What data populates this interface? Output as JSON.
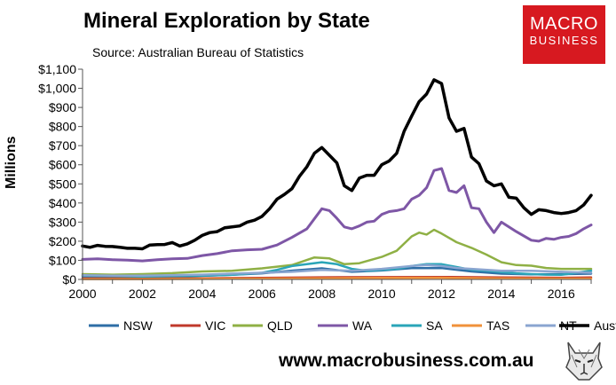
{
  "brand": {
    "line1": "MACRO",
    "line2": "BUSINESS",
    "color": "#d71920"
  },
  "website": "www.macrobusiness.com.au",
  "logo_icon": "wolf-head-icon",
  "chart_data": {
    "type": "line",
    "title": "Mineral Exploration by State",
    "subtitle": "Source: Australian Bureau of Statistics",
    "xlabel": "",
    "ylabel": "Millions",
    "xlim": [
      2000,
      2017
    ],
    "ylim": [
      0,
      1100
    ],
    "x_ticks": [
      2000,
      2002,
      2004,
      2006,
      2008,
      2010,
      2012,
      2014,
      2016
    ],
    "x_tick_labels": [
      "2000",
      "2002",
      "2004",
      "2006",
      "2008",
      "2010",
      "2012",
      "2014",
      "2016"
    ],
    "y_ticks": [
      0,
      100,
      200,
      300,
      400,
      500,
      600,
      700,
      800,
      900,
      1000,
      1100
    ],
    "y_tick_labels": [
      "$0",
      "$100",
      "$200",
      "$300",
      "$400",
      "$500",
      "$600",
      "$700",
      "$800",
      "$900",
      "$1,000",
      "$1,100"
    ],
    "grid": false,
    "legend_position": "bottom",
    "series": [
      {
        "name": "NSW",
        "color": "#2e6ea6",
        "width": 2.5,
        "x": [
          2000,
          2001,
          2002,
          2003,
          2004,
          2005,
          2006,
          2007,
          2008,
          2009,
          2010,
          2011,
          2012,
          2013,
          2014,
          2015,
          2016,
          2017
        ],
        "values": [
          14,
          13,
          13,
          15,
          19,
          24,
          32,
          46,
          58,
          40,
          47,
          59,
          60,
          42,
          30,
          27,
          28,
          30
        ]
      },
      {
        "name": "VIC",
        "color": "#c0392b",
        "width": 2.5,
        "x": [
          2000,
          2002,
          2004,
          2006,
          2008,
          2010,
          2012,
          2014,
          2016,
          2017
        ],
        "values": [
          5,
          5,
          6,
          8,
          11,
          12,
          13,
          10,
          9,
          10
        ]
      },
      {
        "name": "QLD",
        "color": "#8fb045",
        "width": 2.5,
        "x": [
          2000,
          2001,
          2002,
          2003,
          2004,
          2005,
          2006,
          2007,
          2007.75,
          2008.25,
          2008.75,
          2009.25,
          2010,
          2010.5,
          2011,
          2011.25,
          2011.5,
          2011.75,
          2012,
          2012.5,
          2013,
          2013.5,
          2014,
          2014.5,
          2015,
          2015.5,
          2016,
          2017
        ],
        "values": [
          28,
          25,
          28,
          33,
          42,
          45,
          58,
          75,
          115,
          110,
          80,
          85,
          118,
          150,
          225,
          245,
          235,
          260,
          240,
          195,
          165,
          130,
          90,
          75,
          72,
          60,
          55,
          55
        ]
      },
      {
        "name": "WA",
        "color": "#7e57a6",
        "width": 3,
        "x": [
          2000,
          2000.5,
          2001,
          2001.5,
          2002,
          2002.5,
          2003,
          2003.5,
          2004,
          2004.5,
          2005,
          2005.5,
          2006,
          2006.5,
          2007,
          2007.5,
          2008,
          2008.25,
          2008.5,
          2008.75,
          2009,
          2009.25,
          2009.5,
          2009.75,
          2010,
          2010.25,
          2010.5,
          2010.75,
          2011,
          2011.25,
          2011.5,
          2011.75,
          2012,
          2012.25,
          2012.5,
          2012.75,
          2013,
          2013.25,
          2013.5,
          2013.75,
          2014,
          2014.5,
          2015,
          2015.25,
          2015.5,
          2015.75,
          2016,
          2016.25,
          2016.5,
          2016.75,
          2017
        ],
        "values": [
          105,
          108,
          103,
          101,
          97,
          103,
          108,
          110,
          125,
          135,
          150,
          155,
          158,
          180,
          220,
          265,
          370,
          360,
          320,
          275,
          265,
          280,
          300,
          305,
          340,
          355,
          360,
          370,
          420,
          440,
          480,
          570,
          580,
          465,
          455,
          490,
          375,
          370,
          300,
          245,
          300,
          250,
          205,
          200,
          215,
          210,
          220,
          225,
          240,
          265,
          285
        ]
      },
      {
        "name": "SA",
        "color": "#2aa5b8",
        "width": 2.5,
        "x": [
          2000,
          2001,
          2002,
          2003,
          2004,
          2005,
          2006,
          2006.5,
          2007,
          2007.5,
          2008,
          2008.5,
          2009,
          2009.5,
          2010,
          2010.5,
          2011,
          2011.5,
          2012,
          2012.5,
          2013,
          2013.5,
          2014,
          2014.5,
          2015,
          2015.5,
          2016,
          2017
        ],
        "values": [
          20,
          18,
          15,
          17,
          20,
          24,
          35,
          50,
          70,
          80,
          90,
          80,
          55,
          45,
          50,
          55,
          70,
          80,
          80,
          65,
          50,
          45,
          38,
          32,
          28,
          25,
          24,
          45
        ]
      },
      {
        "name": "TAS",
        "color": "#f0913a",
        "width": 2.5,
        "x": [
          2000,
          2002,
          2004,
          2006,
          2008,
          2010,
          2012,
          2014,
          2016,
          2017
        ],
        "values": [
          2,
          2,
          3,
          4,
          6,
          8,
          9,
          5,
          4,
          4
        ]
      },
      {
        "name": "NT",
        "color": "#8aa5d0",
        "width": 2.5,
        "x": [
          2000,
          2001,
          2002,
          2003,
          2004,
          2005,
          2006,
          2007,
          2008,
          2009,
          2010,
          2011,
          2011.5,
          2012,
          2012.5,
          2013,
          2014,
          2015,
          2016,
          2017
        ],
        "values": [
          22,
          20,
          20,
          22,
          25,
          30,
          35,
          40,
          50,
          45,
          55,
          70,
          75,
          70,
          60,
          55,
          45,
          45,
          40,
          35
        ]
      },
      {
        "name": "Aust",
        "color": "#000000",
        "width": 3.5,
        "x": [
          2000,
          2000.25,
          2000.5,
          2000.75,
          2001,
          2001.25,
          2001.5,
          2001.75,
          2002,
          2002.25,
          2002.5,
          2002.75,
          2003,
          2003.25,
          2003.5,
          2003.75,
          2004,
          2004.25,
          2004.5,
          2004.75,
          2005,
          2005.25,
          2005.5,
          2005.75,
          2006,
          2006.25,
          2006.5,
          2006.75,
          2007,
          2007.25,
          2007.5,
          2007.75,
          2008,
          2008.25,
          2008.5,
          2008.75,
          2009,
          2009.25,
          2009.5,
          2009.75,
          2010,
          2010.25,
          2010.5,
          2010.75,
          2011,
          2011.25,
          2011.5,
          2011.75,
          2012,
          2012.25,
          2012.5,
          2012.75,
          2013,
          2013.25,
          2013.5,
          2013.75,
          2014,
          2014.25,
          2014.5,
          2014.75,
          2015,
          2015.25,
          2015.5,
          2015.75,
          2016,
          2016.25,
          2016.5,
          2016.75,
          2017
        ],
        "values": [
          175,
          168,
          178,
          173,
          172,
          168,
          163,
          163,
          160,
          180,
          182,
          183,
          193,
          175,
          186,
          205,
          230,
          245,
          250,
          270,
          275,
          280,
          300,
          310,
          330,
          370,
          420,
          445,
          475,
          540,
          590,
          660,
          690,
          650,
          610,
          490,
          465,
          530,
          545,
          545,
          600,
          620,
          660,
          775,
          855,
          930,
          970,
          1045,
          1025,
          845,
          775,
          790,
          640,
          605,
          515,
          490,
          500,
          430,
          425,
          375,
          340,
          365,
          360,
          350,
          345,
          350,
          360,
          390,
          440
        ]
      }
    ]
  }
}
